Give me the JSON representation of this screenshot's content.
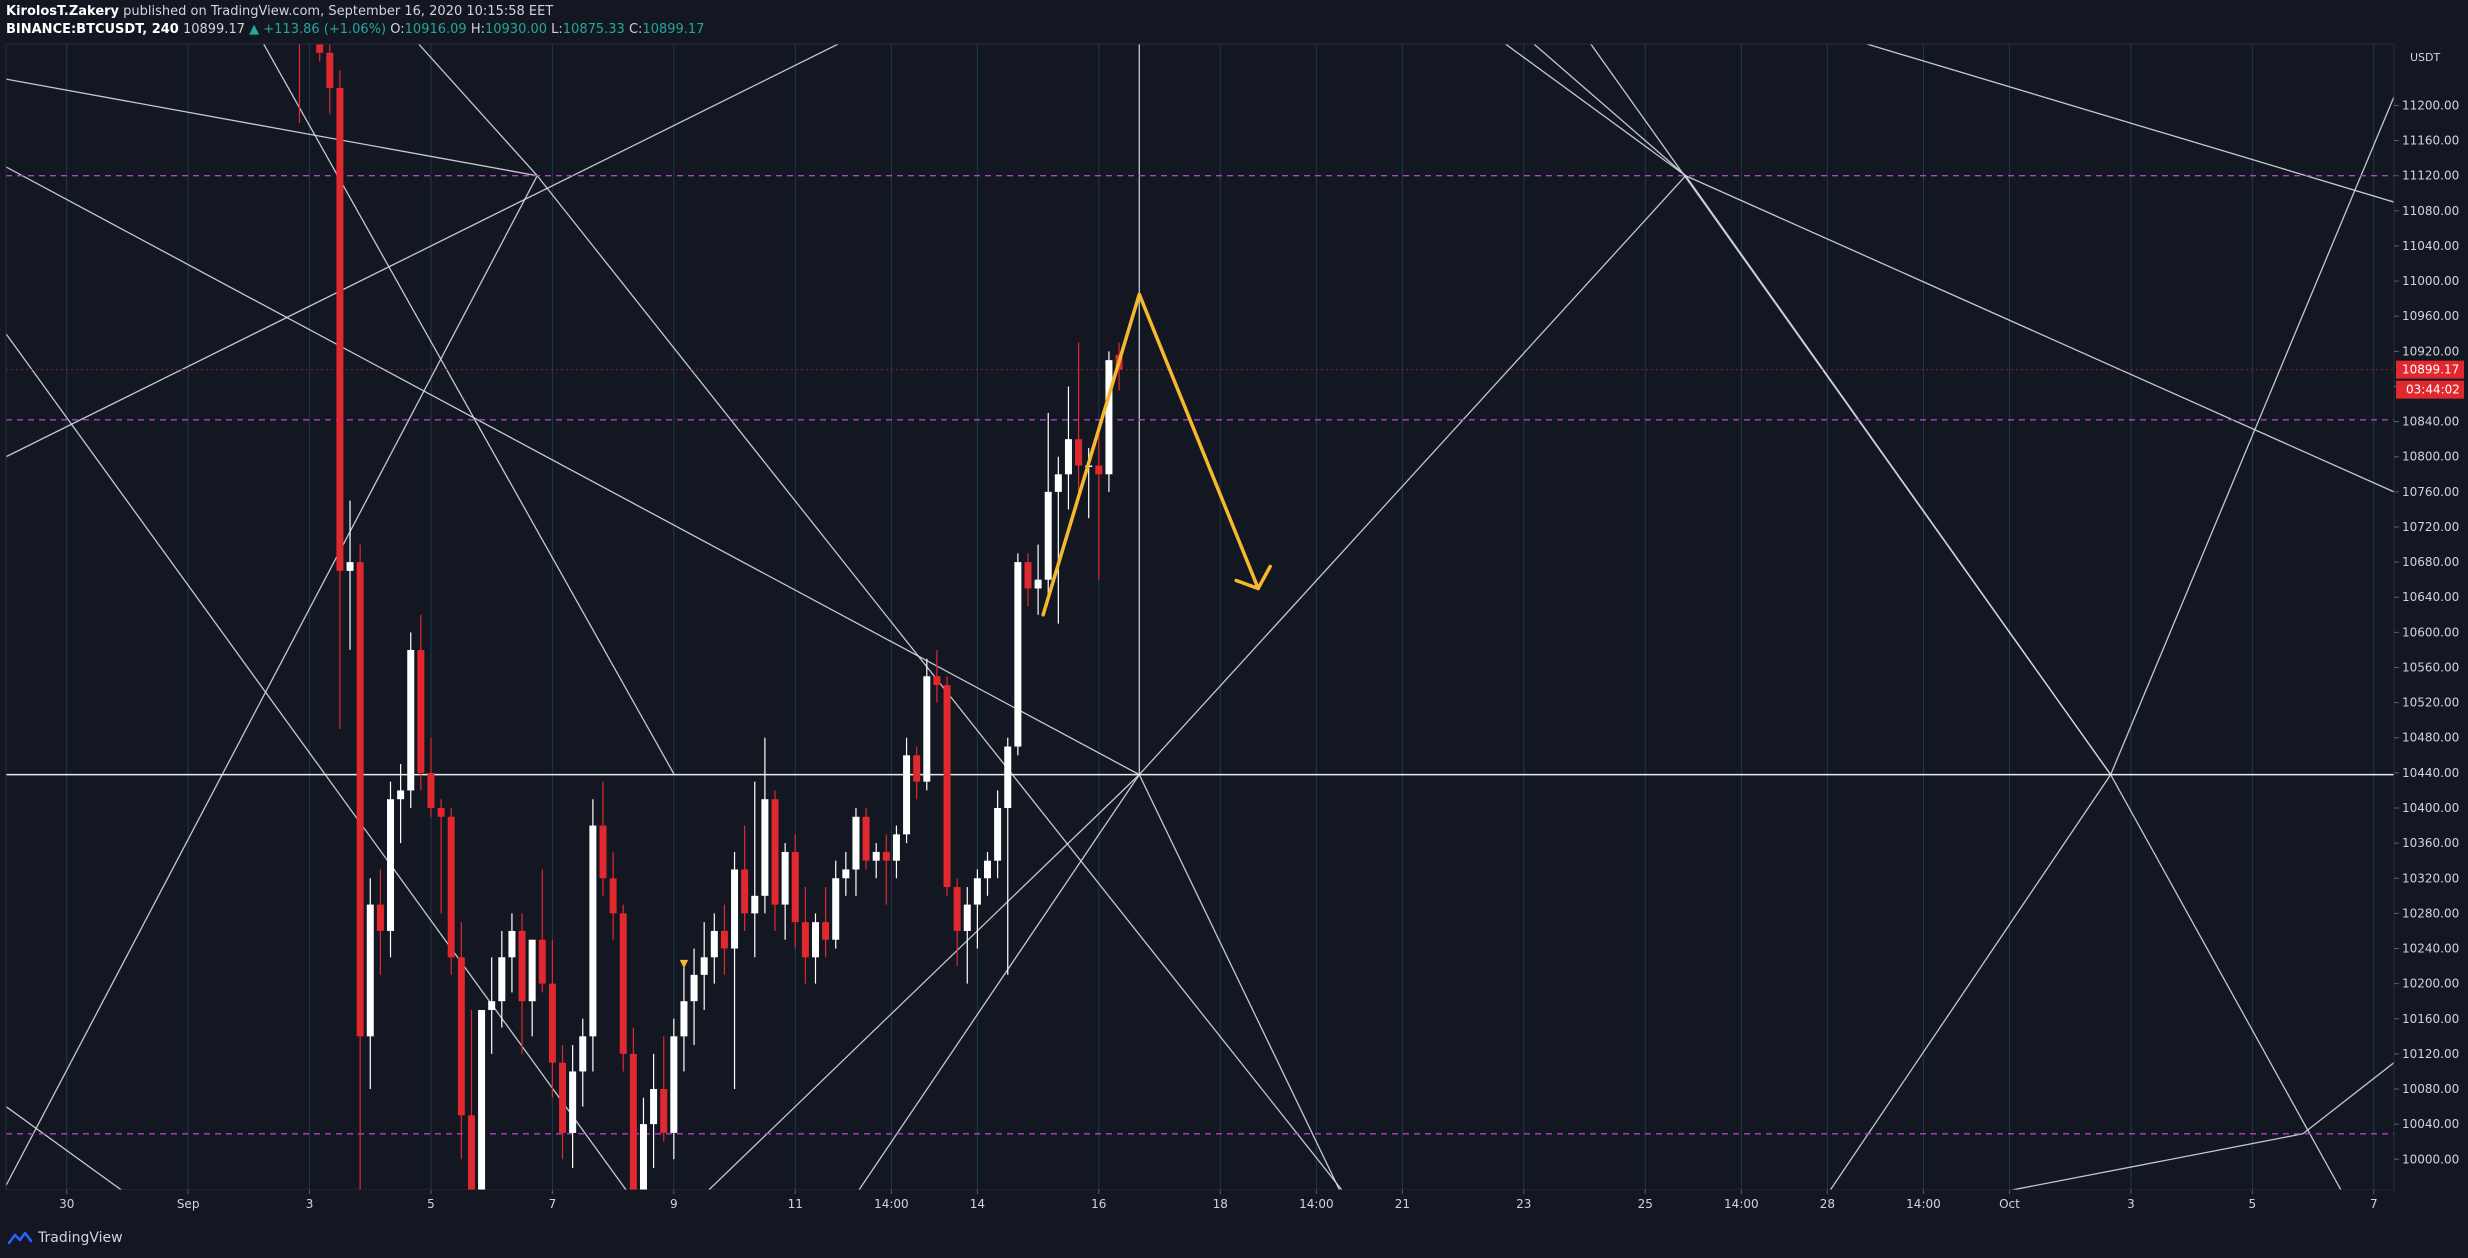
{
  "header": {
    "author": "KirolosT.Zakery",
    "published": " published on TradingView.com, September 16, 2020 10:15:58 EET",
    "symbol": "BINANCE:BTCUSDT, 240",
    "last": "10899.17",
    "change": "▲ +113.86 (+1.06%)",
    "o_label": "O:",
    "o_value": "10916.09",
    "h_label": "H:",
    "h_value": "10930.00",
    "l_label": "L:",
    "l_value": "10875.33",
    "c_label": "C:",
    "c_value": "10899.17"
  },
  "footer": {
    "brand": "TradingView"
  },
  "colors": {
    "bg": "#131722",
    "up": "#ffffff",
    "down": "#e0282e",
    "fan": "#d7dbe3",
    "purple": "#b043c9",
    "arrow": "#f5b82e",
    "grid_v": "#1c3a4a"
  },
  "chart_data": {
    "type": "candlestick",
    "currency": "USDT",
    "ylim": [
      9965,
      11270
    ],
    "y_ticks": [
      10000,
      10040,
      10080,
      10120,
      10160,
      10200,
      10240,
      10280,
      10320,
      10360,
      10400,
      10440,
      10480,
      10520,
      10560,
      10600,
      10640,
      10680,
      10720,
      10760,
      10800,
      10840,
      10880,
      10920,
      10960,
      11000,
      11040,
      11080,
      11120,
      11160,
      11200
    ],
    "y_tick_labels": [
      "10000.00",
      "10040.00",
      "10080.00",
      "10120.00",
      "10160.00",
      "10200.00",
      "10240.00",
      "10280.00",
      "10320.00",
      "10360.00",
      "10400.00",
      "10440.00",
      "10480.00",
      "10520.00",
      "10560.00",
      "10600.00",
      "10640.00",
      "10680.00",
      "10720.00",
      "10760.00",
      "10800.00",
      "10840.00",
      "10880.00",
      "10920.00",
      "10960.00",
      "11000.00",
      "11040.00",
      "11080.00",
      "11120.00",
      "11160.00",
      "11200.00"
    ],
    "x_range": [
      "2020-08-29T00:00",
      "2020-10-07T08:00"
    ],
    "x_ticks": [
      {
        "t": "2020-08-30T00:00",
        "label": "30"
      },
      {
        "t": "2020-09-01T00:00",
        "label": "Sep"
      },
      {
        "t": "2020-09-03T00:00",
        "label": "3"
      },
      {
        "t": "2020-09-05T00:00",
        "label": "5"
      },
      {
        "t": "2020-09-07T00:00",
        "label": "7"
      },
      {
        "t": "2020-09-09T00:00",
        "label": "9"
      },
      {
        "t": "2020-09-11T00:00",
        "label": "11"
      },
      {
        "t": "2020-09-12T14:00",
        "label": "14:00"
      },
      {
        "t": "2020-09-14T00:00",
        "label": "14"
      },
      {
        "t": "2020-09-16T00:00",
        "label": "16"
      },
      {
        "t": "2020-09-18T00:00",
        "label": "18"
      },
      {
        "t": "2020-09-19T14:00",
        "label": "14:00"
      },
      {
        "t": "2020-09-21T00:00",
        "label": "21"
      },
      {
        "t": "2020-09-23T00:00",
        "label": "23"
      },
      {
        "t": "2020-09-25T00:00",
        "label": "25"
      },
      {
        "t": "2020-09-26T14:00",
        "label": "14:00"
      },
      {
        "t": "2020-09-28T00:00",
        "label": "28"
      },
      {
        "t": "2020-09-29T14:00",
        "label": "14:00"
      },
      {
        "t": "2020-10-01T00:00",
        "label": "Oct"
      },
      {
        "t": "2020-10-03T00:00",
        "label": "3"
      },
      {
        "t": "2020-10-05T00:00",
        "label": "5"
      },
      {
        "t": "2020-10-07T00:00",
        "label": "7"
      }
    ],
    "current_price": "10899.17",
    "countdown": "03:44:02",
    "candles": [
      {
        "t": "2020-09-02T20:00",
        "o": 11440,
        "h": 11500,
        "l": 11180,
        "c": 11300
      },
      {
        "t": "2020-09-03T00:00",
        "o": 11300,
        "h": 11360,
        "l": 11270,
        "c": 11280
      },
      {
        "t": "2020-09-03T04:00",
        "o": 11280,
        "h": 11320,
        "l": 11250,
        "c": 11260
      },
      {
        "t": "2020-09-03T08:00",
        "o": 11260,
        "h": 11300,
        "l": 11190,
        "c": 11220
      },
      {
        "t": "2020-09-03T12:00",
        "o": 11220,
        "h": 11240,
        "l": 10490,
        "c": 10670
      },
      {
        "t": "2020-09-03T16:00",
        "o": 10670,
        "h": 10750,
        "l": 10580,
        "c": 10680
      },
      {
        "t": "2020-09-03T20:00",
        "o": 10680,
        "h": 10700,
        "l": 9930,
        "c": 10140
      },
      {
        "t": "2020-09-04T00:00",
        "o": 10140,
        "h": 10320,
        "l": 10080,
        "c": 10290
      },
      {
        "t": "2020-09-04T04:00",
        "o": 10290,
        "h": 10330,
        "l": 10210,
        "c": 10260
      },
      {
        "t": "2020-09-04T08:00",
        "o": 10260,
        "h": 10430,
        "l": 10230,
        "c": 10410
      },
      {
        "t": "2020-09-04T12:00",
        "o": 10410,
        "h": 10450,
        "l": 10360,
        "c": 10420
      },
      {
        "t": "2020-09-04T16:00",
        "o": 10420,
        "h": 10600,
        "l": 10400,
        "c": 10580
      },
      {
        "t": "2020-09-04T20:00",
        "o": 10580,
        "h": 10620,
        "l": 10420,
        "c": 10440
      },
      {
        "t": "2020-09-05T00:00",
        "o": 10440,
        "h": 10480,
        "l": 10390,
        "c": 10400
      },
      {
        "t": "2020-09-05T04:00",
        "o": 10400,
        "h": 10410,
        "l": 10280,
        "c": 10390
      },
      {
        "t": "2020-09-05T08:00",
        "o": 10390,
        "h": 10400,
        "l": 10210,
        "c": 10230
      },
      {
        "t": "2020-09-05T12:00",
        "o": 10230,
        "h": 10270,
        "l": 10000,
        "c": 10050
      },
      {
        "t": "2020-09-05T16:00",
        "o": 10050,
        "h": 10170,
        "l": 9880,
        "c": 9920
      },
      {
        "t": "2020-09-05T20:00",
        "o": 9920,
        "h": 10170,
        "l": 9880,
        "c": 10170
      },
      {
        "t": "2020-09-06T00:00",
        "o": 10170,
        "h": 10230,
        "l": 10120,
        "c": 10180
      },
      {
        "t": "2020-09-06T04:00",
        "o": 10180,
        "h": 10260,
        "l": 10150,
        "c": 10230
      },
      {
        "t": "2020-09-06T08:00",
        "o": 10230,
        "h": 10280,
        "l": 10190,
        "c": 10260
      },
      {
        "t": "2020-09-06T12:00",
        "o": 10260,
        "h": 10280,
        "l": 10120,
        "c": 10180
      },
      {
        "t": "2020-09-06T16:00",
        "o": 10180,
        "h": 10250,
        "l": 10140,
        "c": 10250
      },
      {
        "t": "2020-09-06T20:00",
        "o": 10250,
        "h": 10330,
        "l": 10190,
        "c": 10200
      },
      {
        "t": "2020-09-07T00:00",
        "o": 10200,
        "h": 10250,
        "l": 10070,
        "c": 10110
      },
      {
        "t": "2020-09-07T04:00",
        "o": 10110,
        "h": 10130,
        "l": 10000,
        "c": 10030
      },
      {
        "t": "2020-09-07T08:00",
        "o": 10030,
        "h": 10130,
        "l": 9990,
        "c": 10100
      },
      {
        "t": "2020-09-07T12:00",
        "o": 10100,
        "h": 10160,
        "l": 10060,
        "c": 10140
      },
      {
        "t": "2020-09-07T16:00",
        "o": 10140,
        "h": 10410,
        "l": 10100,
        "c": 10380
      },
      {
        "t": "2020-09-07T20:00",
        "o": 10380,
        "h": 10430,
        "l": 10300,
        "c": 10320
      },
      {
        "t": "2020-09-08T00:00",
        "o": 10320,
        "h": 10350,
        "l": 10250,
        "c": 10280
      },
      {
        "t": "2020-09-08T04:00",
        "o": 10280,
        "h": 10290,
        "l": 10100,
        "c": 10120
      },
      {
        "t": "2020-09-08T08:00",
        "o": 10120,
        "h": 10150,
        "l": 9850,
        "c": 9870
      },
      {
        "t": "2020-09-08T12:00",
        "o": 9870,
        "h": 10070,
        "l": 9830,
        "c": 10040
      },
      {
        "t": "2020-09-08T16:00",
        "o": 10040,
        "h": 10120,
        "l": 9990,
        "c": 10080
      },
      {
        "t": "2020-09-08T20:00",
        "o": 10080,
        "h": 10140,
        "l": 10020,
        "c": 10030
      },
      {
        "t": "2020-09-09T00:00",
        "o": 10030,
        "h": 10160,
        "l": 10000,
        "c": 10140
      },
      {
        "t": "2020-09-09T04:00",
        "o": 10140,
        "h": 10220,
        "l": 10100,
        "c": 10180
      },
      {
        "t": "2020-09-09T08:00",
        "o": 10180,
        "h": 10240,
        "l": 10130,
        "c": 10210
      },
      {
        "t": "2020-09-09T12:00",
        "o": 10210,
        "h": 10270,
        "l": 10170,
        "c": 10230
      },
      {
        "t": "2020-09-09T16:00",
        "o": 10230,
        "h": 10280,
        "l": 10200,
        "c": 10260
      },
      {
        "t": "2020-09-09T20:00",
        "o": 10260,
        "h": 10290,
        "l": 10210,
        "c": 10240
      },
      {
        "t": "2020-09-10T00:00",
        "o": 10240,
        "h": 10350,
        "l": 10080,
        "c": 10330
      },
      {
        "t": "2020-09-10T04:00",
        "o": 10330,
        "h": 10380,
        "l": 10260,
        "c": 10280
      },
      {
        "t": "2020-09-10T08:00",
        "o": 10280,
        "h": 10430,
        "l": 10230,
        "c": 10300
      },
      {
        "t": "2020-09-10T12:00",
        "o": 10300,
        "h": 10480,
        "l": 10280,
        "c": 10410
      },
      {
        "t": "2020-09-10T16:00",
        "o": 10410,
        "h": 10420,
        "l": 10260,
        "c": 10290
      },
      {
        "t": "2020-09-10T20:00",
        "o": 10290,
        "h": 10360,
        "l": 10250,
        "c": 10350
      },
      {
        "t": "2020-09-11T00:00",
        "o": 10350,
        "h": 10370,
        "l": 10240,
        "c": 10270
      },
      {
        "t": "2020-09-11T04:00",
        "o": 10270,
        "h": 10310,
        "l": 10200,
        "c": 10230
      },
      {
        "t": "2020-09-11T08:00",
        "o": 10230,
        "h": 10280,
        "l": 10200,
        "c": 10270
      },
      {
        "t": "2020-09-11T12:00",
        "o": 10270,
        "h": 10310,
        "l": 10230,
        "c": 10250
      },
      {
        "t": "2020-09-11T16:00",
        "o": 10250,
        "h": 10340,
        "l": 10240,
        "c": 10320
      },
      {
        "t": "2020-09-11T20:00",
        "o": 10320,
        "h": 10350,
        "l": 10300,
        "c": 10330
      },
      {
        "t": "2020-09-12T00:00",
        "o": 10330,
        "h": 10400,
        "l": 10300,
        "c": 10390
      },
      {
        "t": "2020-09-12T04:00",
        "o": 10390,
        "h": 10400,
        "l": 10330,
        "c": 10340
      },
      {
        "t": "2020-09-12T08:00",
        "o": 10340,
        "h": 10360,
        "l": 10320,
        "c": 10350
      },
      {
        "t": "2020-09-12T12:00",
        "o": 10350,
        "h": 10370,
        "l": 10290,
        "c": 10340
      },
      {
        "t": "2020-09-12T16:00",
        "o": 10340,
        "h": 10380,
        "l": 10320,
        "c": 10370
      },
      {
        "t": "2020-09-12T20:00",
        "o": 10370,
        "h": 10480,
        "l": 10360,
        "c": 10460
      },
      {
        "t": "2020-09-13T00:00",
        "o": 10460,
        "h": 10470,
        "l": 10410,
        "c": 10430
      },
      {
        "t": "2020-09-13T04:00",
        "o": 10430,
        "h": 10570,
        "l": 10420,
        "c": 10550
      },
      {
        "t": "2020-09-13T08:00",
        "o": 10550,
        "h": 10580,
        "l": 10520,
        "c": 10540
      },
      {
        "t": "2020-09-13T12:00",
        "o": 10540,
        "h": 10550,
        "l": 10300,
        "c": 10310
      },
      {
        "t": "2020-09-13T16:00",
        "o": 10310,
        "h": 10320,
        "l": 10220,
        "c": 10260
      },
      {
        "t": "2020-09-13T20:00",
        "o": 10260,
        "h": 10310,
        "l": 10200,
        "c": 10290
      },
      {
        "t": "2020-09-14T00:00",
        "o": 10290,
        "h": 10330,
        "l": 10240,
        "c": 10320
      },
      {
        "t": "2020-09-14T04:00",
        "o": 10320,
        "h": 10350,
        "l": 10300,
        "c": 10340
      },
      {
        "t": "2020-09-14T08:00",
        "o": 10340,
        "h": 10420,
        "l": 10320,
        "c": 10400
      },
      {
        "t": "2020-09-14T12:00",
        "o": 10400,
        "h": 10480,
        "l": 10210,
        "c": 10470
      },
      {
        "t": "2020-09-14T16:00",
        "o": 10470,
        "h": 10690,
        "l": 10460,
        "c": 10680
      },
      {
        "t": "2020-09-14T20:00",
        "o": 10680,
        "h": 10690,
        "l": 10630,
        "c": 10650
      },
      {
        "t": "2020-09-15T00:00",
        "o": 10650,
        "h": 10700,
        "l": 10620,
        "c": 10660
      },
      {
        "t": "2020-09-15T04:00",
        "o": 10660,
        "h": 10850,
        "l": 10640,
        "c": 10760
      },
      {
        "t": "2020-09-15T08:00",
        "o": 10760,
        "h": 10800,
        "l": 10610,
        "c": 10780
      },
      {
        "t": "2020-09-15T12:00",
        "o": 10780,
        "h": 10880,
        "l": 10740,
        "c": 10820
      },
      {
        "t": "2020-09-15T16:00",
        "o": 10820,
        "h": 10930,
        "l": 10760,
        "c": 10790
      },
      {
        "t": "2020-09-15T20:00",
        "o": 10790,
        "h": 10810,
        "l": 10730,
        "c": 10790
      },
      {
        "t": "2020-09-16T00:00",
        "o": 10790,
        "h": 10830,
        "l": 10660,
        "c": 10780
      },
      {
        "t": "2020-09-16T04:00",
        "o": 10780,
        "h": 10920,
        "l": 10760,
        "c": 10910
      },
      {
        "t": "2020-09-16T08:00",
        "o": 10916.09,
        "h": 10930,
        "l": 10875.33,
        "c": 10899.17
      }
    ],
    "horizontal_lines": [
      {
        "price": 11120,
        "style": "dashed-purple"
      },
      {
        "price": 10842,
        "style": "dashed-purple"
      },
      {
        "price": 10029,
        "style": "dashed-purple"
      },
      {
        "price": 10438,
        "style": "solid-white"
      }
    ],
    "projection_path": [
      {
        "t": "2020-09-15T02:00",
        "price": 10620
      },
      {
        "t": "2020-09-16T16:00",
        "price": 10985
      },
      {
        "t": "2020-09-18T15:00",
        "price": 10650
      }
    ],
    "marker": {
      "t": "2020-09-09T04:00",
      "price": 10210,
      "symbol": "▼"
    }
  }
}
